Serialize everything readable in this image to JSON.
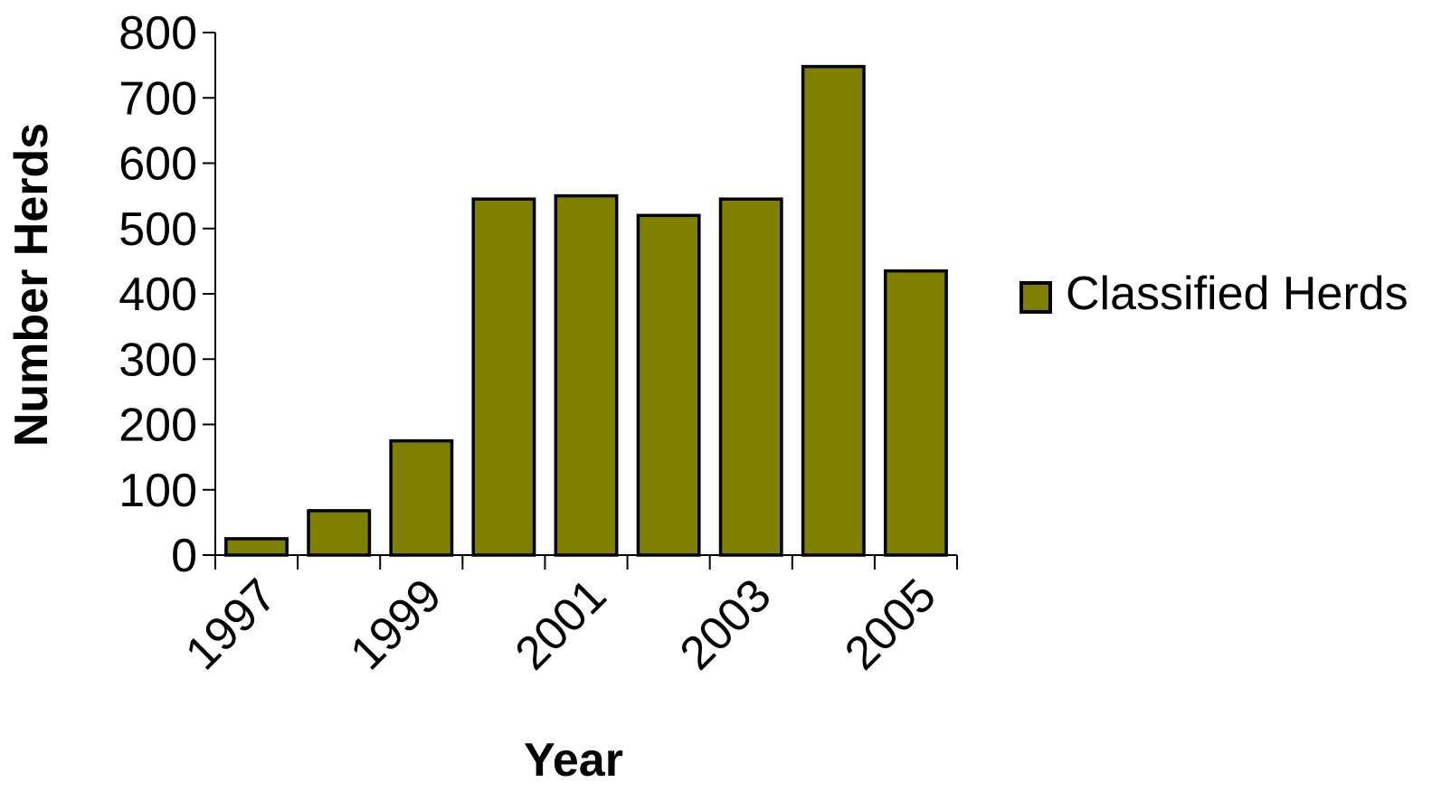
{
  "chart_data": {
    "type": "bar",
    "categories": [
      "1997",
      "1998",
      "1999",
      "2000",
      "2001",
      "2002",
      "2003",
      "2004",
      "2005"
    ],
    "x_tick_labels": [
      "1997",
      "1999",
      "2001",
      "2003",
      "2005"
    ],
    "series": [
      {
        "name": "Classified Herds",
        "values": [
          25,
          68,
          175,
          545,
          550,
          520,
          545,
          748,
          435
        ],
        "color": "#808000"
      }
    ],
    "xlabel": "Year",
    "ylabel": "Number Herds",
    "ylim": [
      0,
      800
    ],
    "yticks": [
      0,
      100,
      200,
      300,
      400,
      500,
      600,
      700,
      800
    ],
    "grid": false,
    "legend_position": "right"
  }
}
